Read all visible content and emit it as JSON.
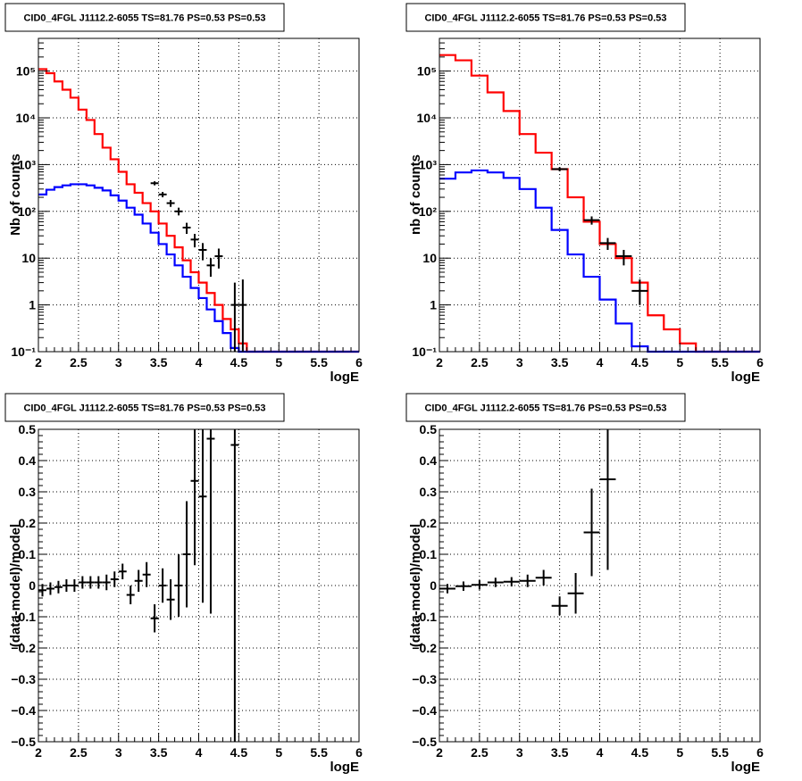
{
  "chart_data": [
    {
      "type": "line",
      "title": "CID0_4FGL J1112.2-6055 TS=81.76 PS=0.53 PS=0.53",
      "xlabel": "logE",
      "ylabel": "Nb of counts",
      "xlim": [
        2,
        6
      ],
      "ylim": [
        0.1,
        500000
      ],
      "yscale": "log",
      "grid": true,
      "xticks": [
        2,
        2.5,
        3,
        3.5,
        4,
        4.5,
        5,
        5.5,
        6
      ],
      "xtick_labels": [
        "2",
        "2.5",
        "3",
        "3.5",
        "4",
        "4.5",
        "5",
        "5.5",
        "6"
      ],
      "yticks": [
        0.1,
        1,
        10,
        100,
        1000,
        10000,
        100000
      ],
      "ytick_labels": [
        "10⁻¹",
        "1",
        "10",
        "10²",
        "10³",
        "10⁴",
        "10⁵"
      ],
      "series": [
        {
          "role": "model-total",
          "color": "#ff0000",
          "bin_width": 0.1,
          "x": [
            2.0,
            2.1,
            2.2,
            2.3,
            2.4,
            2.5,
            2.6,
            2.7,
            2.8,
            2.9,
            3.0,
            3.1,
            3.2,
            3.3,
            3.4,
            3.5,
            3.6,
            3.7,
            3.8,
            3.9,
            4.0,
            4.1,
            4.2,
            4.3,
            4.4,
            4.5,
            4.6,
            4.7,
            4.8,
            4.9,
            5.0,
            5.1,
            5.2,
            5.3,
            5.4,
            5.5,
            5.6,
            5.7,
            5.8,
            5.9
          ],
          "values": [
            110000,
            90000,
            60000,
            40000,
            27000,
            15000,
            9000,
            4500,
            2300,
            1300,
            700,
            380,
            250,
            150,
            100,
            55,
            30,
            17,
            9,
            5,
            3,
            1.8,
            1,
            0.5,
            0.3,
            0.15,
            0.1,
            0.1,
            0.1,
            0.1,
            0.1,
            0.1,
            0.1,
            0.1,
            0.1,
            0.1,
            0.1,
            0.1,
            0.1,
            0.1
          ]
        },
        {
          "role": "model-source",
          "color": "#0000ff",
          "bin_width": 0.1,
          "x": [
            2.0,
            2.1,
            2.2,
            2.3,
            2.4,
            2.5,
            2.6,
            2.7,
            2.8,
            2.9,
            3.0,
            3.1,
            3.2,
            3.3,
            3.4,
            3.5,
            3.6,
            3.7,
            3.8,
            3.9,
            4.0,
            4.1,
            4.2,
            4.3,
            4.4,
            4.5,
            4.6,
            4.7,
            4.8,
            4.9,
            5.0,
            5.1,
            5.2,
            5.3,
            5.4,
            5.5,
            5.6,
            5.7,
            5.8,
            5.9
          ],
          "values": [
            230,
            290,
            330,
            360,
            380,
            380,
            360,
            320,
            280,
            220,
            170,
            120,
            85,
            55,
            35,
            20,
            12,
            7,
            4,
            2.3,
            1.4,
            0.8,
            0.45,
            0.25,
            0.12,
            0.1,
            0.1,
            0.1,
            0.1,
            0.1,
            0.1,
            0.1,
            0.1,
            0.1,
            0.1,
            0.1,
            0.1,
            0.1,
            0.1,
            0.1
          ]
        },
        {
          "role": "data",
          "color": "#000000",
          "x": [
            3.45,
            3.55,
            3.65,
            3.75,
            3.85,
            3.95,
            4.05,
            4.15,
            4.25,
            4.45,
            4.55
          ],
          "y": [
            400,
            230,
            150,
            100,
            45,
            25,
            15,
            7,
            11,
            1,
            1
          ],
          "xerr": 0.05,
          "y_low": [
            360,
            200,
            125,
            82,
            33,
            17,
            9,
            4,
            6,
            0.1,
            0.1
          ],
          "y_high": [
            440,
            260,
            175,
            120,
            57,
            33,
            21,
            10,
            16,
            3,
            3.5
          ]
        }
      ]
    },
    {
      "type": "line",
      "title": "CID0_4FGL J1112.2-6055 TS=81.76 PS=0.53 PS=0.53",
      "xlabel": "logE",
      "ylabel": "nb of counts",
      "xlim": [
        2,
        6
      ],
      "ylim": [
        0.1,
        500000
      ],
      "yscale": "log",
      "grid": true,
      "xticks": [
        2,
        2.5,
        3,
        3.5,
        4,
        4.5,
        5,
        5.5,
        6
      ],
      "xtick_labels": [
        "2",
        "2.5",
        "3",
        "3.5",
        "4",
        "4.5",
        "5",
        "5.5",
        "6"
      ],
      "yticks": [
        0.1,
        1,
        10,
        100,
        1000,
        10000,
        100000
      ],
      "ytick_labels": [
        "10⁻¹",
        "1",
        "10",
        "10²",
        "10³",
        "10⁴",
        "10⁵"
      ],
      "series": [
        {
          "role": "model-total",
          "color": "#ff0000",
          "bin_width": 0.2,
          "x": [
            2.0,
            2.2,
            2.4,
            2.6,
            2.8,
            3.0,
            3.2,
            3.4,
            3.6,
            3.8,
            4.0,
            4.2,
            4.4,
            4.6,
            4.8,
            5.0,
            5.2,
            5.4,
            5.6,
            5.8
          ],
          "values": [
            220000,
            170000,
            80000,
            35000,
            14000,
            4500,
            1800,
            800,
            200,
            60,
            20,
            10,
            3,
            0.6,
            0.3,
            0.15,
            0.1,
            0.1,
            0.1,
            0.1
          ]
        },
        {
          "role": "model-source",
          "color": "#0000ff",
          "bin_width": 0.2,
          "x": [
            2.0,
            2.2,
            2.4,
            2.6,
            2.8,
            3.0,
            3.2,
            3.4,
            3.6,
            3.8,
            4.0,
            4.2,
            4.4,
            4.6,
            4.8,
            5.0,
            5.2,
            5.4,
            5.6,
            5.8
          ],
          "values": [
            500,
            680,
            750,
            680,
            520,
            300,
            120,
            40,
            12,
            4,
            1.3,
            0.4,
            0.13,
            0.1,
            0.1,
            0.1,
            0.1,
            0.1,
            0.1,
            0.1
          ]
        },
        {
          "role": "data",
          "color": "#000000",
          "x": [
            3.5,
            3.9,
            4.1,
            4.3,
            4.5
          ],
          "y": [
            800,
            65,
            21,
            11,
            2
          ],
          "xerr": 0.1,
          "y_low": [
            720,
            52,
            15,
            7,
            1
          ],
          "y_high": [
            880,
            78,
            27,
            15,
            3.5
          ]
        }
      ]
    },
    {
      "type": "scatter",
      "title": "CID0_4FGL J1112.2-6055 TS=81.76 PS=0.53 PS=0.53",
      "xlabel": "logE",
      "ylabel": "(data-model)/model",
      "xlim": [
        2,
        6
      ],
      "ylim": [
        -0.5,
        0.5
      ],
      "grid": true,
      "xticks": [
        2,
        2.5,
        3,
        3.5,
        4,
        4.5,
        5,
        5.5,
        6
      ],
      "xtick_labels": [
        "2",
        "2.5",
        "3",
        "3.5",
        "4",
        "4.5",
        "5",
        "5.5",
        "6"
      ],
      "yticks": [
        -0.5,
        -0.4,
        -0.3,
        -0.2,
        -0.1,
        0,
        0.1,
        0.2,
        0.3,
        0.4,
        0.5
      ],
      "ytick_labels": [
        "−0.5",
        "−0.4",
        "−0.3",
        "−0.2",
        "−0.1",
        "0",
        "0.1",
        "0.2",
        "0.3",
        "0.4",
        "0.5"
      ],
      "series": [
        {
          "role": "residuals",
          "color": "#000000",
          "xerr": 0.05,
          "x": [
            2.05,
            2.15,
            2.25,
            2.35,
            2.45,
            2.55,
            2.65,
            2.75,
            2.85,
            2.95,
            3.05,
            3.15,
            3.25,
            3.35,
            3.45,
            3.55,
            3.65,
            3.75,
            3.85,
            3.95,
            4.05,
            4.15,
            4.45
          ],
          "y": [
            -0.015,
            -0.01,
            -0.005,
            0,
            0,
            0.01,
            0.01,
            0.01,
            0.01,
            0.02,
            0.045,
            -0.03,
            0.015,
            0.035,
            -0.105,
            0,
            -0.045,
            0,
            0.1,
            0.335,
            0.285,
            0.47,
            0.45
          ],
          "yerr": [
            0.02,
            0.02,
            0.02,
            0.02,
            0.02,
            0.02,
            0.02,
            0.02,
            0.025,
            0.025,
            0.025,
            0.03,
            0.035,
            0.04,
            0.045,
            0.055,
            0.065,
            0.1,
            0.17,
            0.27,
            0.34,
            0.56,
            1.0
          ]
        }
      ]
    },
    {
      "type": "scatter",
      "title": "CID0_4FGL J1112.2-6055 TS=81.76 PS=0.53 PS=0.53",
      "xlabel": "logE",
      "ylabel": "(data-model)/model",
      "xlim": [
        2,
        6
      ],
      "ylim": [
        -0.5,
        0.5
      ],
      "grid": true,
      "xticks": [
        2,
        2.5,
        3,
        3.5,
        4,
        4.5,
        5,
        5.5,
        6
      ],
      "xtick_labels": [
        "2",
        "2.5",
        "3",
        "3.5",
        "4",
        "4.5",
        "5",
        "5.5",
        "6"
      ],
      "yticks": [
        -0.5,
        -0.4,
        -0.3,
        -0.2,
        -0.1,
        0,
        0.1,
        0.2,
        0.3,
        0.4,
        0.5
      ],
      "ytick_labels": [
        "−0.5",
        "−0.4",
        "−0.3",
        "−0.2",
        "−0.1",
        "0",
        "0.1",
        "0.2",
        "0.3",
        "0.4",
        "0.5"
      ],
      "series": [
        {
          "role": "residuals",
          "color": "#000000",
          "xerr": 0.1,
          "x": [
            2.1,
            2.3,
            2.5,
            2.7,
            2.9,
            3.1,
            3.3,
            3.5,
            3.7,
            3.9,
            4.1
          ],
          "y": [
            -0.01,
            -0.002,
            0.002,
            0.01,
            0.012,
            0.015,
            0.025,
            -0.065,
            -0.025,
            0.17,
            0.34
          ],
          "yerr": [
            0.015,
            0.015,
            0.015,
            0.015,
            0.015,
            0.02,
            0.025,
            0.03,
            0.065,
            0.14,
            0.29
          ]
        }
      ]
    }
  ]
}
